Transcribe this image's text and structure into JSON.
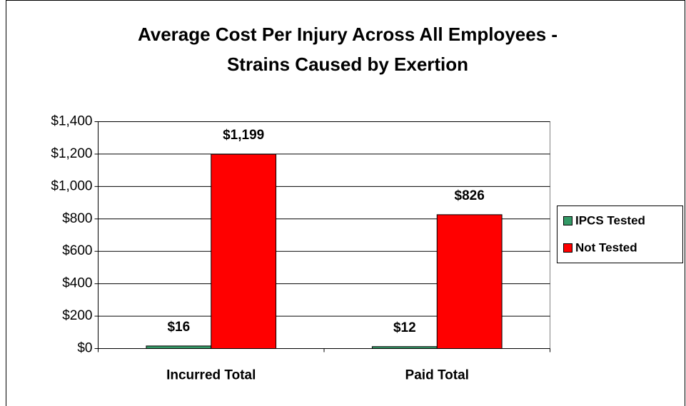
{
  "chart_data": {
    "type": "bar",
    "title": [
      "Average Cost Per Injury Across All Employees -",
      "Strains Caused by Exertion"
    ],
    "categories": [
      "Incurred Total",
      "Paid Total"
    ],
    "series": [
      {
        "name": "IPCS Tested",
        "color": "#339966",
        "values": [
          16,
          12
        ],
        "value_labels": [
          "$16",
          "$12"
        ]
      },
      {
        "name": "Not Tested",
        "color": "#ff0000",
        "values": [
          1199,
          826
        ],
        "value_labels": [
          "$1,199",
          "$826"
        ]
      }
    ],
    "ylim": [
      0,
      1400
    ],
    "yticks": [
      {
        "value": 0,
        "label": "$0"
      },
      {
        "value": 200,
        "label": "$200"
      },
      {
        "value": 400,
        "label": "$400"
      },
      {
        "value": 600,
        "label": "$600"
      },
      {
        "value": 800,
        "label": "$800"
      },
      {
        "value": 1000,
        "label": "$1,000"
      },
      {
        "value": 1200,
        "label": "$1,200"
      },
      {
        "value": 1400,
        "label": "$1,400"
      }
    ],
    "grid": true,
    "legend": "right"
  }
}
